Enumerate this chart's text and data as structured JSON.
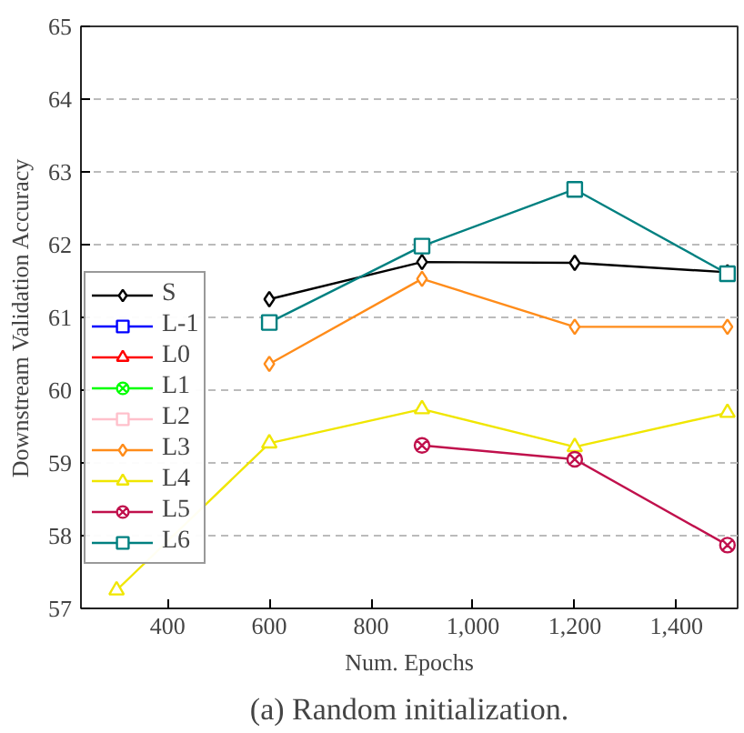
{
  "chart_data": {
    "type": "line",
    "xlabel": "Num. Epochs",
    "ylabel": "Downstream Validation Accuracy",
    "x": [
      300,
      600,
      900,
      1200,
      1500
    ],
    "xlim": [
      230,
      1520
    ],
    "ylim": [
      57,
      65
    ],
    "xticks": [
      400,
      600,
      800,
      {
        "value": 1000,
        "label": "1,000"
      },
      {
        "value": 1200,
        "label": "1,200"
      },
      {
        "value": 1400,
        "label": "1,400"
      }
    ],
    "yticks": [
      57,
      58,
      59,
      60,
      61,
      62,
      63,
      64,
      65
    ],
    "grid": "y",
    "legend": "left",
    "series": [
      {
        "name": "S",
        "color": "#000000",
        "marker": "diamond",
        "values": [
          null,
          61.25,
          61.76,
          61.75,
          61.62
        ]
      },
      {
        "name": "L-1",
        "color": "#0000ff",
        "marker": "square",
        "values": [
          null,
          null,
          null,
          null,
          null
        ]
      },
      {
        "name": "L0",
        "color": "#ff0000",
        "marker": "triangle",
        "values": [
          null,
          null,
          null,
          null,
          null
        ]
      },
      {
        "name": "L1",
        "color": "#00ff00",
        "marker": "cross",
        "values": [
          null,
          null,
          null,
          null,
          null
        ]
      },
      {
        "name": "L2",
        "color": "#ffc0cb",
        "marker": "square",
        "values": [
          null,
          null,
          null,
          null,
          null
        ]
      },
      {
        "name": "L3",
        "color": "#ff8c1a",
        "marker": "diamond",
        "values": [
          null,
          60.36,
          61.53,
          60.87,
          60.87
        ]
      },
      {
        "name": "L4",
        "color": "#f0e600",
        "marker": "triangle",
        "values": [
          57.25,
          59.27,
          59.74,
          59.22,
          59.69
        ]
      },
      {
        "name": "L5",
        "color": "#c0104c",
        "marker": "cross",
        "values": [
          null,
          null,
          59.24,
          59.05,
          57.87
        ]
      },
      {
        "name": "L6",
        "color": "#008080",
        "marker": "square",
        "values": [
          null,
          60.93,
          61.98,
          62.76,
          61.6
        ]
      }
    ],
    "annotations": [
      "(a) Random initialization."
    ]
  }
}
